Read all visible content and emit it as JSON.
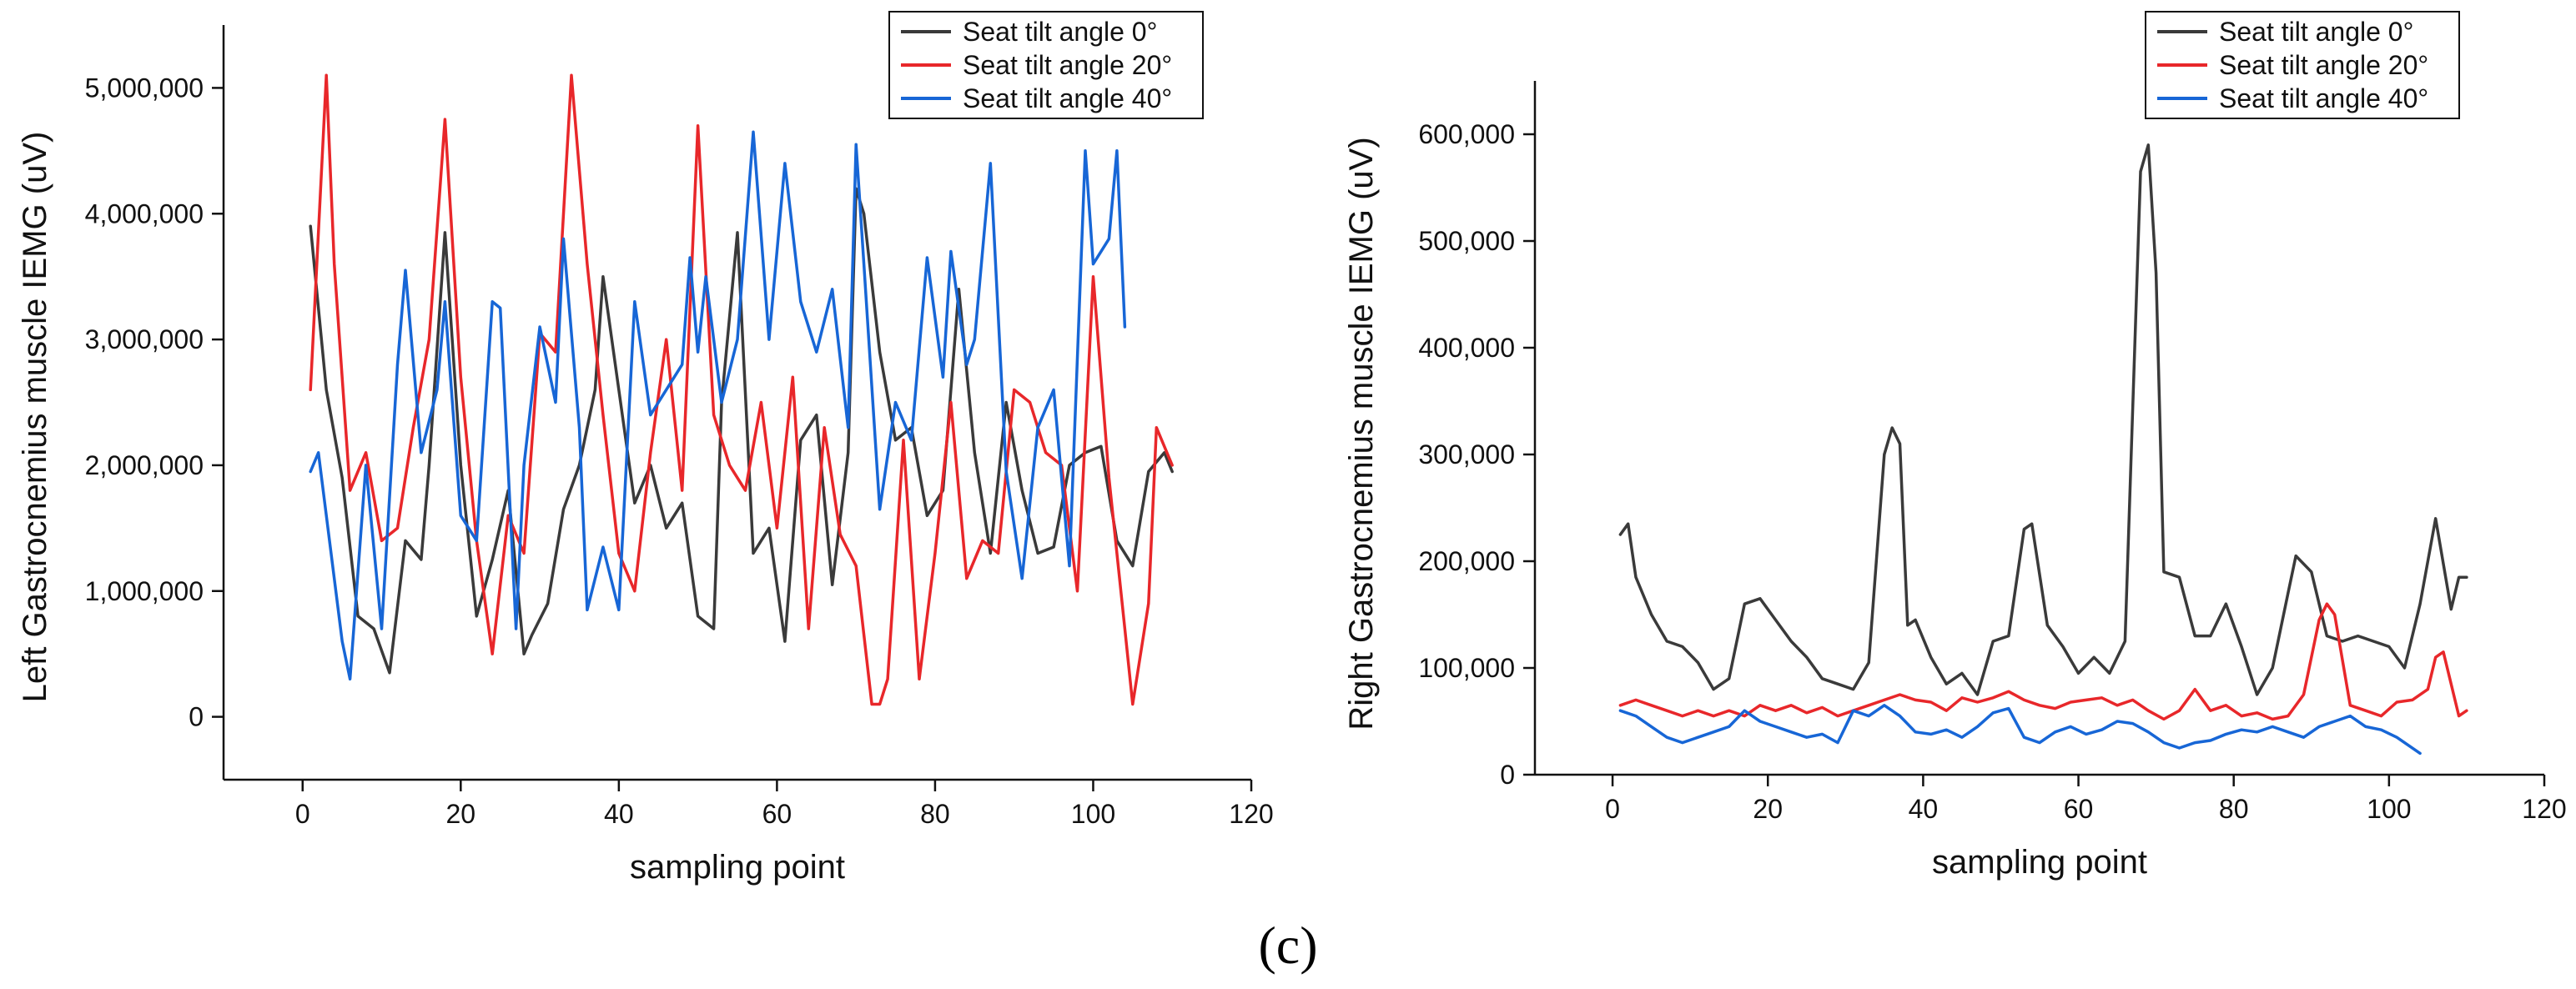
{
  "caption": "(c)",
  "colors": {
    "s0": "#3a3a3a",
    "s20": "#e8272a",
    "s40": "#1766d6"
  },
  "chart_data": [
    {
      "type": "line",
      "ylabel": "Left Gastrocnemius muscle  IEMG (uV)",
      "xlabel": "sampling point",
      "xlim": [
        -10,
        120
      ],
      "ylim": [
        -500000,
        5500000
      ],
      "xticks": [
        0,
        20,
        40,
        60,
        80,
        100,
        120
      ],
      "yticks": [
        0,
        1000000,
        2000000,
        3000000,
        4000000,
        5000000
      ],
      "ytick_labels": [
        "0",
        "1,000,000",
        "2,000,000",
        "3,000,000",
        "4,000,000",
        "5,000,000"
      ],
      "legend": [
        "Seat tilt angle  0°",
        "Seat tilt angle  20°",
        "Seat tilt angle  40°"
      ],
      "series": [
        {
          "name": "Seat tilt angle  0°",
          "x": [
            1,
            3,
            5,
            7,
            9,
            11,
            13,
            15,
            16,
            18,
            20,
            22,
            24,
            26,
            28,
            29,
            31,
            33,
            35,
            37,
            38,
            40,
            42,
            44,
            46,
            48,
            50,
            52,
            53,
            55,
            57,
            59,
            61,
            63,
            65,
            67,
            69,
            70,
            71,
            73,
            75,
            77,
            79,
            81,
            83,
            85,
            87,
            89,
            91,
            93,
            95,
            97,
            99,
            101,
            103,
            105,
            107,
            109,
            110
          ],
          "y": [
            3900000,
            2600000,
            1900000,
            800000,
            700000,
            350000,
            1400000,
            1250000,
            2000000,
            3850000,
            2000000,
            800000,
            1250000,
            1800000,
            500000,
            650000,
            900000,
            1650000,
            2000000,
            2600000,
            3500000,
            2600000,
            1700000,
            2000000,
            1500000,
            1700000,
            800000,
            700000,
            2500000,
            3850000,
            1300000,
            1500000,
            600000,
            2200000,
            2400000,
            1050000,
            2100000,
            4200000,
            4000000,
            2900000,
            2200000,
            2300000,
            1600000,
            1800000,
            3400000,
            2100000,
            1300000,
            2500000,
            1800000,
            1300000,
            1350000,
            2000000,
            2100000,
            2150000,
            1400000,
            1200000,
            1950000,
            2100000,
            1950000
          ]
        },
        {
          "name": "Seat tilt angle  20°",
          "x": [
            1,
            3,
            4,
            6,
            8,
            10,
            12,
            14,
            16,
            18,
            20,
            22,
            24,
            26,
            28,
            30,
            32,
            34,
            36,
            38,
            40,
            42,
            44,
            46,
            48,
            50,
            52,
            54,
            56,
            58,
            60,
            62,
            64,
            66,
            68,
            70,
            72,
            73,
            74,
            76,
            78,
            80,
            82,
            84,
            86,
            88,
            90,
            92,
            94,
            96,
            98,
            100,
            102,
            104,
            105,
            107,
            108,
            110
          ],
          "y": [
            2600000,
            5100000,
            3600000,
            1800000,
            2100000,
            1400000,
            1500000,
            2300000,
            3000000,
            4750000,
            2700000,
            1400000,
            500000,
            1600000,
            1300000,
            3050000,
            2900000,
            5100000,
            3600000,
            2400000,
            1300000,
            1000000,
            2100000,
            3000000,
            1800000,
            4700000,
            2400000,
            2000000,
            1800000,
            2500000,
            1500000,
            2700000,
            700000,
            2300000,
            1450000,
            1200000,
            100000,
            100000,
            300000,
            2200000,
            300000,
            1300000,
            2500000,
            1100000,
            1400000,
            1300000,
            2600000,
            2500000,
            2100000,
            2000000,
            1000000,
            3500000,
            1900000,
            700000,
            100000,
            900000,
            2300000,
            2000000
          ]
        },
        {
          "name": "Seat tilt angle  40°",
          "x": [
            1,
            2,
            3,
            5,
            6,
            8,
            10,
            12,
            13,
            15,
            17,
            18,
            20,
            22,
            24,
            25,
            27,
            28,
            30,
            32,
            33,
            35,
            36,
            38,
            40,
            42,
            44,
            46,
            48,
            49,
            50,
            51,
            53,
            55,
            57,
            59,
            61,
            63,
            65,
            67,
            69,
            70,
            71,
            73,
            75,
            77,
            79,
            81,
            82,
            84,
            85,
            87,
            89,
            91,
            93,
            95,
            97,
            99,
            100,
            102,
            103,
            104
          ],
          "y": [
            1950000,
            2100000,
            1600000,
            600000,
            300000,
            2000000,
            700000,
            2800000,
            3550000,
            2100000,
            2600000,
            3300000,
            1600000,
            1400000,
            3300000,
            3250000,
            700000,
            2000000,
            3100000,
            2500000,
            3800000,
            2300000,
            850000,
            1350000,
            850000,
            3300000,
            2400000,
            2600000,
            2800000,
            3650000,
            2900000,
            3500000,
            2500000,
            3000000,
            4650000,
            3000000,
            4400000,
            3300000,
            2900000,
            3400000,
            2300000,
            4550000,
            3600000,
            1650000,
            2500000,
            2200000,
            3650000,
            2700000,
            3700000,
            2800000,
            3000000,
            4400000,
            1950000,
            1100000,
            2300000,
            2600000,
            1200000,
            4500000,
            3600000,
            3800000,
            4500000,
            3100000
          ]
        }
      ]
    },
    {
      "type": "line",
      "ylabel": "Right Gastrocnemius muscle  IEMG (uV)",
      "xlabel": "sampling point",
      "xlim": [
        -10,
        120
      ],
      "ylim": [
        0,
        650000
      ],
      "xticks": [
        0,
        20,
        40,
        60,
        80,
        100,
        120
      ],
      "yticks": [
        0,
        100000,
        200000,
        300000,
        400000,
        500000,
        600000
      ],
      "ytick_labels": [
        "0",
        "100,000",
        "200,000",
        "300,000",
        "400,000",
        "500,000",
        "600,000"
      ],
      "legend": [
        "Seat tilt angle  0°",
        "Seat tilt angle  20°",
        "Seat tilt angle  40°"
      ],
      "series": [
        {
          "name": "Seat tilt angle  0°",
          "x": [
            1,
            2,
            3,
            5,
            7,
            9,
            11,
            13,
            15,
            17,
            19,
            21,
            23,
            25,
            27,
            29,
            31,
            33,
            35,
            36,
            37,
            38,
            39,
            41,
            43,
            45,
            47,
            49,
            51,
            53,
            54,
            56,
            58,
            60,
            62,
            64,
            66,
            68,
            69,
            70,
            71,
            73,
            75,
            77,
            79,
            81,
            83,
            85,
            87,
            88,
            90,
            92,
            94,
            96,
            98,
            100,
            102,
            104,
            106,
            108,
            109,
            110
          ],
          "y": [
            225000,
            235000,
            185000,
            150000,
            125000,
            120000,
            105000,
            80000,
            90000,
            160000,
            165000,
            145000,
            125000,
            110000,
            90000,
            85000,
            80000,
            105000,
            300000,
            325000,
            310000,
            140000,
            145000,
            110000,
            85000,
            95000,
            75000,
            125000,
            130000,
            230000,
            235000,
            140000,
            120000,
            95000,
            110000,
            95000,
            125000,
            565000,
            590000,
            470000,
            190000,
            185000,
            130000,
            130000,
            160000,
            120000,
            75000,
            100000,
            170000,
            205000,
            190000,
            130000,
            125000,
            130000,
            125000,
            120000,
            100000,
            160000,
            240000,
            155000,
            185000,
            185000
          ]
        },
        {
          "name": "Seat tilt angle  20°",
          "x": [
            1,
            3,
            5,
            7,
            9,
            11,
            13,
            15,
            17,
            19,
            21,
            23,
            25,
            27,
            29,
            31,
            33,
            35,
            37,
            39,
            41,
            43,
            45,
            47,
            49,
            51,
            53,
            55,
            57,
            59,
            61,
            63,
            65,
            67,
            69,
            71,
            73,
            75,
            77,
            79,
            81,
            83,
            85,
            87,
            89,
            91,
            92,
            93,
            95,
            97,
            99,
            101,
            103,
            105,
            106,
            107,
            109,
            110
          ],
          "y": [
            65000,
            70000,
            65000,
            60000,
            55000,
            60000,
            55000,
            60000,
            55000,
            65000,
            60000,
            65000,
            58000,
            63000,
            55000,
            60000,
            65000,
            70000,
            75000,
            70000,
            68000,
            60000,
            72000,
            68000,
            72000,
            78000,
            70000,
            65000,
            62000,
            68000,
            70000,
            72000,
            65000,
            70000,
            60000,
            52000,
            60000,
            80000,
            60000,
            65000,
            55000,
            58000,
            52000,
            55000,
            75000,
            145000,
            160000,
            150000,
            65000,
            60000,
            55000,
            68000,
            70000,
            80000,
            110000,
            115000,
            55000,
            60000
          ]
        },
        {
          "name": "Seat tilt angle  40°",
          "x": [
            1,
            3,
            5,
            7,
            9,
            11,
            13,
            15,
            17,
            19,
            21,
            23,
            25,
            27,
            29,
            31,
            33,
            35,
            37,
            39,
            41,
            43,
            45,
            47,
            49,
            51,
            53,
            55,
            57,
            59,
            61,
            63,
            65,
            67,
            69,
            71,
            73,
            75,
            77,
            79,
            81,
            83,
            85,
            87,
            89,
            91,
            93,
            95,
            97,
            99,
            101,
            104
          ],
          "y": [
            60000,
            55000,
            45000,
            35000,
            30000,
            35000,
            40000,
            45000,
            60000,
            50000,
            45000,
            40000,
            35000,
            38000,
            30000,
            60000,
            55000,
            65000,
            55000,
            40000,
            38000,
            42000,
            35000,
            45000,
            58000,
            62000,
            35000,
            30000,
            40000,
            45000,
            38000,
            42000,
            50000,
            48000,
            40000,
            30000,
            25000,
            30000,
            32000,
            38000,
            42000,
            40000,
            45000,
            40000,
            35000,
            45000,
            50000,
            55000,
            45000,
            42000,
            35000,
            20000
          ]
        }
      ]
    }
  ]
}
